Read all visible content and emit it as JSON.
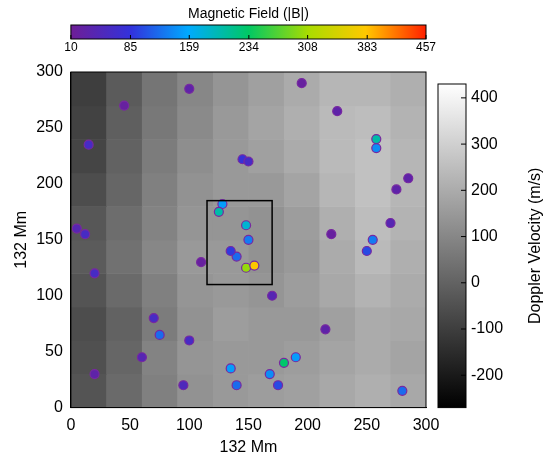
{
  "chart_data": {
    "type": "scatter",
    "xlabel": "132 Mm",
    "ylabel": "132 Mm",
    "xlim": [
      0,
      300
    ],
    "ylim": [
      0,
      300
    ],
    "xticks": [
      0,
      50,
      100,
      150,
      200,
      250,
      300
    ],
    "yticks": [
      0,
      50,
      100,
      150,
      200,
      250,
      300
    ],
    "grid": false,
    "marker": "circle",
    "background": {
      "title": "Doppler Velocity (m/s)",
      "xbins": [
        0,
        30,
        60,
        90,
        120,
        150,
        180,
        210,
        240,
        270,
        300
      ],
      "ybins": [
        0,
        30,
        60,
        90,
        120,
        150,
        180,
        210,
        240,
        270,
        300
      ],
      "cells": [
        [
          -40,
          20,
          80,
          130,
          150,
          160,
          170,
          190,
          210,
          190
        ],
        [
          -50,
          10,
          90,
          140,
          150,
          150,
          160,
          180,
          200,
          180
        ],
        [
          -60,
          0,
          70,
          130,
          160,
          150,
          150,
          170,
          200,
          190
        ],
        [
          -40,
          20,
          80,
          140,
          150,
          140,
          160,
          190,
          220,
          200
        ],
        [
          -20,
          40,
          100,
          150,
          150,
          130,
          150,
          200,
          240,
          210
        ],
        [
          -30,
          30,
          90,
          140,
          140,
          130,
          160,
          210,
          250,
          220
        ],
        [
          -60,
          10,
          80,
          130,
          150,
          150,
          180,
          230,
          260,
          230
        ],
        [
          -80,
          0,
          70,
          120,
          150,
          170,
          200,
          240,
          260,
          230
        ],
        [
          -90,
          -10,
          60,
          110,
          150,
          180,
          210,
          240,
          250,
          220
        ],
        [
          -100,
          -20,
          50,
          100,
          140,
          170,
          200,
          230,
          230,
          210
        ]
      ],
      "range": [
        -270,
        430
      ],
      "ticks": [
        -200,
        -100,
        0,
        100,
        200,
        300,
        400
      ]
    },
    "features": {
      "title": "Magnetic Field (|B|)",
      "x": [
        128,
        125,
        148,
        150,
        140,
        148,
        155,
        135,
        145,
        150,
        258,
        258,
        170,
        255,
        250,
        270,
        60,
        75,
        70,
        100,
        12,
        20,
        5,
        15,
        95,
        135,
        140,
        168,
        180,
        190,
        175,
        280,
        275,
        285,
        215,
        45,
        100,
        195,
        225,
        110,
        20,
        220
      ],
      "y": [
        182,
        175,
        163,
        150,
        135,
        125,
        127,
        140,
        222,
        220,
        240,
        232,
        100,
        150,
        140,
        165,
        45,
        65,
        80,
        60,
        155,
        120,
        160,
        235,
        20,
        35,
        20,
        30,
        40,
        45,
        20,
        15,
        195,
        205,
        70,
        270,
        285,
        290,
        265,
        130,
        30,
        155
      ],
      "values": [
        150,
        200,
        180,
        130,
        120,
        300,
        380,
        90,
        80,
        60,
        200,
        140,
        40,
        130,
        100,
        40,
        40,
        120,
        60,
        60,
        60,
        60,
        40,
        60,
        50,
        150,
        120,
        140,
        230,
        150,
        100,
        120,
        30,
        30,
        30,
        20,
        30,
        20,
        30,
        20,
        30,
        20
      ],
      "range": [
        10,
        457
      ],
      "ticks": [
        10,
        85,
        159,
        234,
        308,
        383,
        457
      ]
    },
    "box": {
      "x": [
        115,
        170
      ],
      "y": [
        110,
        185
      ]
    }
  }
}
